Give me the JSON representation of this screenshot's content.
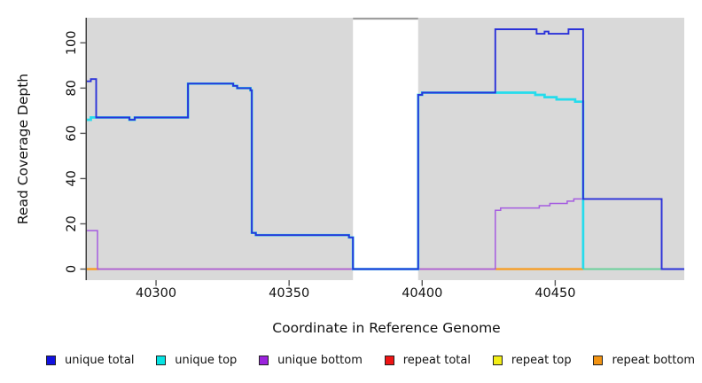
{
  "chart_data": {
    "type": "line",
    "subtype": "step-coverage-plot",
    "title": "",
    "xlabel": "Coordinate in Reference Genome",
    "ylabel": "Read Coverage Depth",
    "xlim": [
      40274,
      40498.5
    ],
    "ylim": [
      0,
      110
    ],
    "x_ticks": [
      40300,
      40350,
      40400,
      40450
    ],
    "y_ticks": [
      0,
      20,
      40,
      60,
      80,
      100
    ],
    "grid": false,
    "plot_background": "#d9d9d9",
    "uncovered_gap": {
      "x1": 40374,
      "x2": 40398.5,
      "fill": "#ffffff",
      "top_border_color": "#9e9e9e"
    },
    "zero_line_segments": [
      {
        "name": "repeat total at 0",
        "color": "#e04458",
        "width": 1.5,
        "x1": 40274,
        "x2": 40498.5,
        "y": 0
      },
      {
        "name": "repeat bottom at 0",
        "color": "#f89b1f",
        "width": 2.3,
        "x1": 40274,
        "x2": 40278.5,
        "y": 0
      },
      {
        "name": "repeat bottom at 0",
        "color": "#f89b1f",
        "width": 2.3,
        "x1": 40427.5,
        "x2": 40460.5,
        "y": 0
      },
      {
        "name": "unique top + repeat top overlap at 0",
        "color": "#6bd09b",
        "width": 2.0,
        "x1": 40460.5,
        "x2": 40490,
        "y": 0
      }
    ],
    "series": [
      {
        "name": "unique bottom",
        "color": "#a55ce0",
        "width": 1.5,
        "points": [
          [
            40274,
            17
          ],
          [
            40278,
            17
          ],
          [
            40278,
            0
          ],
          [
            40427.5,
            0
          ],
          [
            40427.5,
            26
          ],
          [
            40429.5,
            26
          ],
          [
            40429.5,
            27
          ],
          [
            40444,
            27
          ],
          [
            40444,
            28
          ],
          [
            40448,
            28
          ],
          [
            40448,
            29
          ],
          [
            40454.5,
            29
          ],
          [
            40454.5,
            30
          ],
          [
            40457,
            30
          ],
          [
            40457,
            31
          ],
          [
            40490,
            31
          ],
          [
            40490,
            0
          ],
          [
            40498.5,
            0
          ]
        ]
      },
      {
        "name": "unique top",
        "color": "#25dcec",
        "width": 2.7,
        "points": [
          [
            40274,
            66
          ],
          [
            40275.5,
            66
          ],
          [
            40275.5,
            67
          ],
          [
            40290,
            67
          ],
          [
            40290,
            66
          ],
          [
            40292,
            66
          ],
          [
            40292,
            67
          ],
          [
            40312,
            67
          ],
          [
            40312,
            82
          ],
          [
            40329,
            82
          ],
          [
            40329,
            81
          ],
          [
            40330.5,
            81
          ],
          [
            40330.5,
            80
          ],
          [
            40335.5,
            80
          ],
          [
            40335.5,
            79
          ],
          [
            40336,
            79
          ],
          [
            40336,
            16
          ],
          [
            40337.5,
            16
          ],
          [
            40337.5,
            15
          ],
          [
            40372.5,
            15
          ],
          [
            40372.5,
            14
          ],
          [
            40374,
            14
          ],
          [
            40374,
            0
          ],
          [
            40398.5,
            0
          ],
          [
            40398.5,
            77
          ],
          [
            40400,
            77
          ],
          [
            40400,
            78
          ],
          [
            40442.5,
            78
          ],
          [
            40442.5,
            77
          ],
          [
            40446,
            77
          ],
          [
            40446,
            76
          ],
          [
            40450.5,
            76
          ],
          [
            40450.5,
            75
          ],
          [
            40457.5,
            75
          ],
          [
            40457.5,
            74
          ],
          [
            40460.5,
            74
          ],
          [
            40460.5,
            0
          ]
        ]
      },
      {
        "name": "unique total",
        "color": "#2b32d9",
        "width": 1.9,
        "points": [
          [
            40274,
            83
          ],
          [
            40275.5,
            83
          ],
          [
            40275.5,
            84
          ],
          [
            40277.5,
            84
          ],
          [
            40277.5,
            67
          ],
          [
            40290,
            67
          ],
          [
            40290,
            66
          ],
          [
            40292,
            66
          ],
          [
            40292,
            67
          ],
          [
            40312,
            67
          ],
          [
            40312,
            82
          ],
          [
            40329,
            82
          ],
          [
            40329,
            81
          ],
          [
            40330.5,
            81
          ],
          [
            40330.5,
            80
          ],
          [
            40335.5,
            80
          ],
          [
            40335.5,
            79
          ],
          [
            40336,
            79
          ],
          [
            40336,
            16
          ],
          [
            40337.5,
            16
          ],
          [
            40337.5,
            15
          ],
          [
            40372.5,
            15
          ],
          [
            40372.5,
            14
          ],
          [
            40374,
            14
          ],
          [
            40374,
            0
          ],
          [
            40398.5,
            0
          ],
          [
            40398.5,
            77
          ],
          [
            40400,
            77
          ],
          [
            40400,
            78
          ],
          [
            40427.5,
            78
          ],
          [
            40427.5,
            106
          ],
          [
            40443,
            106
          ],
          [
            40443,
            104
          ],
          [
            40446,
            104
          ],
          [
            40446,
            105
          ],
          [
            40447.5,
            105
          ],
          [
            40447.5,
            104
          ],
          [
            40455,
            104
          ],
          [
            40455,
            106
          ],
          [
            40460.5,
            106
          ],
          [
            40460.5,
            31
          ],
          [
            40490,
            31
          ],
          [
            40490,
            0
          ],
          [
            40498.5,
            0
          ]
        ]
      }
    ],
    "legend": {
      "position": "bottom",
      "items": [
        {
          "label": "unique total",
          "color": "#1212e0"
        },
        {
          "label": "unique top",
          "color": "#06e3e3"
        },
        {
          "label": "unique bottom",
          "color": "#9c23dd"
        },
        {
          "label": "repeat total",
          "color": "#ee1414"
        },
        {
          "label": "repeat top",
          "color": "#f2ed16"
        },
        {
          "label": "repeat bottom",
          "color": "#f29312"
        }
      ]
    }
  }
}
